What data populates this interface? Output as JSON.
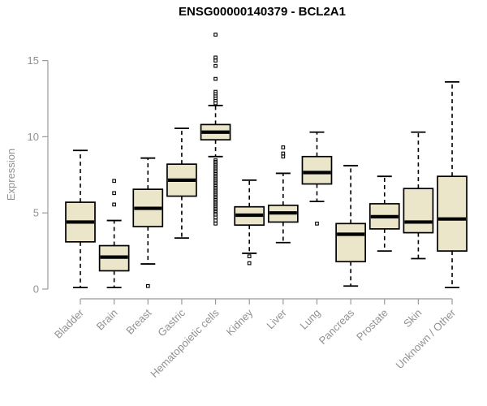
{
  "chart_data": {
    "type": "boxplot",
    "title": "ENSG00000140379 - BCL2A1",
    "ylabel": "Expression",
    "xlabel": "",
    "ylim": [
      0,
      16.9
    ],
    "yticks": [
      0,
      5,
      10,
      15
    ],
    "grid": false,
    "legend": "none",
    "categories": [
      "Bladder",
      "Brain",
      "Breast",
      "Gastric",
      "Hematopoietic cells",
      "Kidney",
      "Liver",
      "Lung",
      "Pancreas",
      "Prostate",
      "Skin",
      "Unknown / Other"
    ],
    "series": [
      {
        "name": "Bladder",
        "whislo": 0.1,
        "q1": 3.1,
        "med": 4.4,
        "q3": 5.7,
        "whishi": 9.1,
        "outliers": []
      },
      {
        "name": "Brain",
        "whislo": 0.1,
        "q1": 1.2,
        "med": 2.1,
        "q3": 2.85,
        "whishi": 4.5,
        "outliers": [
          7.1,
          6.3,
          5.55
        ]
      },
      {
        "name": "Breast",
        "whislo": 1.65,
        "q1": 4.1,
        "med": 5.3,
        "q3": 6.55,
        "whishi": 8.6,
        "outliers": [
          0.2
        ]
      },
      {
        "name": "Gastric",
        "whislo": 3.35,
        "q1": 6.1,
        "med": 7.15,
        "q3": 8.2,
        "whishi": 10.55,
        "outliers": []
      },
      {
        "name": "Hematopoietic cells",
        "whislo": 8.7,
        "q1": 9.8,
        "med": 10.3,
        "q3": 10.8,
        "whishi": 12.05,
        "outliers": [
          16.7,
          15.2,
          15.0,
          14.65,
          13.8,
          12.95,
          12.8,
          12.65,
          12.5,
          12.35,
          12.2,
          8.45,
          8.35,
          8.25,
          8.15,
          8.05,
          7.95,
          7.85,
          7.75,
          7.65,
          7.55,
          7.45,
          7.35,
          7.25,
          7.15,
          7.05,
          6.95,
          6.85,
          6.75,
          6.65,
          6.55,
          6.45,
          6.35,
          6.25,
          6.15,
          6.05,
          5.95,
          5.85,
          5.75,
          5.65,
          5.55,
          5.45,
          5.35,
          5.25,
          5.15,
          5.05,
          4.95,
          4.85,
          4.7,
          4.5,
          4.3
        ]
      },
      {
        "name": "Kidney",
        "whislo": 2.35,
        "q1": 4.2,
        "med": 4.85,
        "q3": 5.4,
        "whishi": 7.15,
        "outliers": [
          2.15,
          1.7
        ]
      },
      {
        "name": "Liver",
        "whislo": 3.05,
        "q1": 4.4,
        "med": 5.0,
        "q3": 5.5,
        "whishi": 7.6,
        "outliers": [
          9.3,
          8.9,
          8.7
        ]
      },
      {
        "name": "Lung",
        "whislo": 5.75,
        "q1": 6.9,
        "med": 7.65,
        "q3": 8.7,
        "whishi": 10.3,
        "outliers": [
          4.3
        ]
      },
      {
        "name": "Pancreas",
        "whislo": 0.2,
        "q1": 1.8,
        "med": 3.6,
        "q3": 4.3,
        "whishi": 8.1,
        "outliers": []
      },
      {
        "name": "Prostate",
        "whislo": 2.5,
        "q1": 3.95,
        "med": 4.75,
        "q3": 5.6,
        "whishi": 7.4,
        "outliers": []
      },
      {
        "name": "Skin",
        "whislo": 2.0,
        "q1": 3.7,
        "med": 4.4,
        "q3": 6.6,
        "whishi": 10.3,
        "outliers": []
      },
      {
        "name": "Unknown / Other",
        "whislo": 0.1,
        "q1": 2.5,
        "med": 4.6,
        "q3": 7.4,
        "whishi": 13.6,
        "outliers": []
      }
    ],
    "colors": {
      "box_fill": "#ebe6c9",
      "box_stroke": "#000000",
      "median": "#000000",
      "whisker": "#000000",
      "outlier_fill": "#ffffff",
      "axis_line": "#9b9b9b",
      "axis_text": "#8f9193",
      "title_text": "#000000"
    }
  }
}
